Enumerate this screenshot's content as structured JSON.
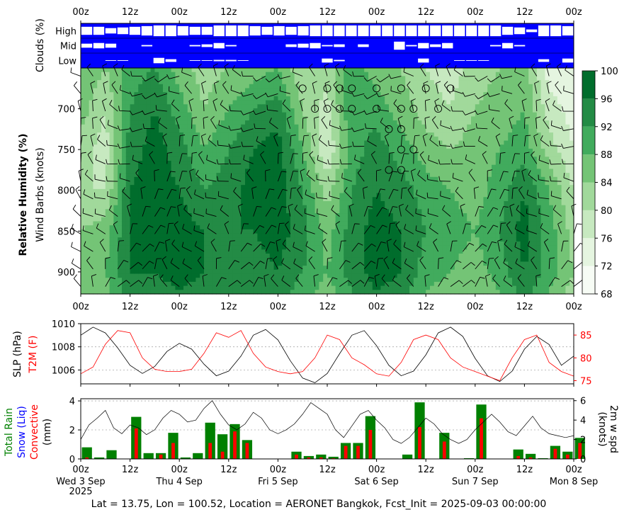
{
  "figure": {
    "footer": "Lat = 13.75, Lon = 100.52, Location = AERONET Bangkok, Fcst_Init = 2025-09-03 00:00:00"
  },
  "time_ticks": [
    "00z",
    "12z",
    "00z",
    "12z",
    "00z",
    "12z",
    "00z",
    "12z",
    "00z",
    "12z",
    "00z"
  ],
  "date_labels": [
    "Wed 3 Sep\n2025",
    "Thu 4 Sep",
    "Fri 5 Sep",
    "Sat 6 Sep",
    "Sun 7 Sep",
    "Mon 8 Sep"
  ],
  "colors": {
    "cloud_bg": "#0000ff",
    "cloud_fill": "#ffffff",
    "rh_scale": [
      "#f7fcf5",
      "#e5f5e0",
      "#c7e9c0",
      "#a1d99b",
      "#74c476",
      "#41ab5d",
      "#238b45",
      "#006d2c",
      "#00441b"
    ],
    "slp_line": "#000000",
    "t2m_line": "#ff0000",
    "rain_bar": "#008000",
    "conv_bar": "#ff0000",
    "wind_line": "#000000"
  },
  "chart_data": [
    {
      "type": "heatmap",
      "name": "clouds",
      "ylabel": "Clouds (%)",
      "levels": [
        "High",
        "Mid",
        "Low"
      ],
      "x_hours": [
        0,
        3,
        6,
        9,
        12,
        15,
        18,
        21,
        24,
        27,
        30,
        33,
        36,
        39,
        42,
        45,
        48,
        51,
        54,
        57,
        60,
        63,
        66,
        69,
        72,
        75,
        78,
        81,
        84,
        87,
        90,
        93,
        96,
        99,
        102,
        105,
        108,
        111,
        114,
        117,
        120
      ],
      "high": [
        60,
        60,
        40,
        50,
        60,
        70,
        80,
        80,
        70,
        60,
        60,
        80,
        80,
        80,
        70,
        60,
        70,
        60,
        70,
        80,
        80,
        80,
        80,
        80,
        80,
        80,
        80,
        80,
        80,
        80,
        80,
        80,
        80,
        80,
        80,
        60,
        50,
        20,
        80,
        80,
        70
      ],
      "mid": [
        30,
        40,
        30,
        0,
        0,
        10,
        0,
        0,
        0,
        10,
        20,
        40,
        10,
        0,
        0,
        0,
        0,
        20,
        30,
        40,
        10,
        20,
        0,
        20,
        0,
        0,
        60,
        10,
        40,
        20,
        40,
        0,
        0,
        0,
        10,
        40,
        10,
        0,
        0,
        0,
        0
      ],
      "low": [
        0,
        0,
        5,
        5,
        0,
        0,
        40,
        20,
        0,
        5,
        5,
        10,
        10,
        5,
        0,
        0,
        0,
        0,
        0,
        0,
        30,
        10,
        0,
        0,
        0,
        0,
        0,
        0,
        30,
        0,
        0,
        5,
        5,
        5,
        0,
        0,
        0,
        0,
        20,
        0,
        30
      ]
    },
    {
      "type": "heatmap",
      "name": "relative_humidity",
      "ylabel": "Relative Humidity (%)",
      "ylabel2": "Wind Barbs (knots)",
      "pressure_ticks": [
        700,
        750,
        800,
        850,
        900
      ],
      "ylim": [
        925,
        650
      ],
      "colorbar_ticks": [
        68,
        72,
        76,
        80,
        84,
        88,
        92,
        96,
        100
      ],
      "x_hours": [
        0,
        6,
        12,
        18,
        24,
        30,
        36,
        42,
        48,
        54,
        60,
        66,
        72,
        78,
        84,
        90,
        96,
        102,
        108,
        114,
        120
      ],
      "pressures": [
        650,
        700,
        750,
        800,
        850,
        900,
        925
      ],
      "rh": [
        [
          88,
          84,
          90,
          92,
          86,
          82,
          84,
          86,
          88,
          80,
          82,
          90,
          86,
          84,
          80,
          78,
          82,
          84,
          86,
          74,
          72
        ],
        [
          86,
          80,
          92,
          96,
          90,
          84,
          88,
          92,
          94,
          84,
          78,
          92,
          90,
          86,
          82,
          80,
          84,
          86,
          88,
          78,
          74
        ],
        [
          82,
          78,
          94,
          98,
          94,
          88,
          92,
          96,
          98,
          88,
          76,
          90,
          94,
          90,
          86,
          84,
          86,
          88,
          90,
          82,
          76
        ],
        [
          80,
          80,
          96,
          98,
          96,
          92,
          94,
          98,
          98,
          92,
          82,
          92,
          96,
          94,
          90,
          88,
          86,
          90,
          96,
          88,
          80
        ],
        [
          84,
          86,
          96,
          98,
          98,
          96,
          96,
          96,
          98,
          94,
          86,
          94,
          98,
          96,
          92,
          90,
          88,
          92,
          98,
          90,
          82
        ],
        [
          86,
          88,
          96,
          96,
          98,
          96,
          94,
          94,
          96,
          92,
          88,
          94,
          98,
          96,
          90,
          88,
          86,
          90,
          96,
          90,
          84
        ],
        [
          84,
          86,
          94,
          94,
          96,
          94,
          92,
          92,
          94,
          90,
          86,
          92,
          96,
          94,
          88,
          86,
          84,
          88,
          94,
          88,
          82
        ]
      ]
    },
    {
      "type": "line",
      "name": "slp_t2m",
      "ylabel": "SLP (hPa)",
      "ylabel2": "T2M (F)",
      "slp_ticks": [
        1006,
        1008,
        1010
      ],
      "t2m_ticks": [
        75,
        80,
        85
      ],
      "slp_ylim": [
        1004.8,
        1010.0
      ],
      "t2m_ylim": [
        74.3,
        87.5
      ],
      "x_hours": [
        0,
        3,
        6,
        9,
        12,
        15,
        18,
        21,
        24,
        27,
        30,
        33,
        36,
        39,
        42,
        45,
        48,
        51,
        54,
        57,
        60,
        63,
        66,
        69,
        72,
        75,
        78,
        81,
        84,
        87,
        90,
        93,
        96,
        99,
        102,
        105,
        108,
        111,
        114,
        117,
        120
      ],
      "series": [
        {
          "name": "SLP",
          "values": [
            1009.0,
            1009.7,
            1009.2,
            1007.9,
            1006.4,
            1005.7,
            1006.3,
            1007.6,
            1008.3,
            1007.8,
            1006.5,
            1005.5,
            1005.9,
            1007.2,
            1009.0,
            1009.5,
            1008.6,
            1006.8,
            1005.3,
            1004.9,
            1005.7,
            1007.4,
            1009.0,
            1009.4,
            1008.1,
            1006.4,
            1005.5,
            1005.9,
            1007.3,
            1009.2,
            1009.7,
            1008.9,
            1007.0,
            1005.5,
            1005.0,
            1005.9,
            1007.8,
            1008.9,
            1008.2,
            1006.4,
            1007.2
          ]
        },
        {
          "name": "T2M",
          "values": [
            76.5,
            78.0,
            83.0,
            86.0,
            85.5,
            80.0,
            77.5,
            77.0,
            77.0,
            77.5,
            81.0,
            85.5,
            84.5,
            86.0,
            81.0,
            78.0,
            77.0,
            76.5,
            77.0,
            80.0,
            85.0,
            84.0,
            80.0,
            78.5,
            76.5,
            76.0,
            79.0,
            84.0,
            85.0,
            84.0,
            80.0,
            78.0,
            77.0,
            76.0,
            75.0,
            80.0,
            84.0,
            85.0,
            79.0,
            77.0,
            76.0
          ]
        }
      ]
    },
    {
      "type": "bar",
      "name": "precip_wind",
      "ylabel_left": [
        "Total Rain",
        "Snow (Liq)",
        "Convective",
        "(mm)"
      ],
      "ylabel_right": "2m w spd\n(knots)",
      "precip_ticks": [
        0,
        2,
        4
      ],
      "wind_ticks": [
        0,
        2,
        4,
        6
      ],
      "precip_ylim": [
        0,
        4.15
      ],
      "wind_ylim": [
        0,
        6.2
      ],
      "bar_hours": [
        0,
        3,
        6,
        9,
        12,
        15,
        18,
        21,
        24,
        27,
        30,
        33,
        36,
        39,
        42,
        45,
        48,
        51,
        54,
        57,
        60,
        63,
        66,
        69,
        72,
        75,
        78,
        81,
        84,
        87,
        90,
        93,
        96,
        99,
        102,
        105,
        108,
        111,
        114,
        117,
        120
      ],
      "total_rain": [
        0.8,
        0.1,
        0.6,
        0,
        2.9,
        0.4,
        0.4,
        1.8,
        0.1,
        0.4,
        2.5,
        1.7,
        2.4,
        1.3,
        0,
        0,
        0,
        0.5,
        0.2,
        0.3,
        0.15,
        1.1,
        1.1,
        2.95,
        0,
        0,
        0.3,
        3.9,
        0,
        1.8,
        0,
        0.05,
        3.75,
        0,
        0.0,
        0.65,
        0.35,
        0.05,
        0.9,
        0.5,
        1.45
      ],
      "convective": [
        0.1,
        0,
        0,
        0,
        2.1,
        0,
        0.3,
        1.1,
        0,
        0,
        1.1,
        0.5,
        1.9,
        1.1,
        0,
        0,
        0,
        0.3,
        0.1,
        0.1,
        0.05,
        0.9,
        0.9,
        2.0,
        0,
        0,
        0,
        2.2,
        0,
        1.2,
        0,
        0,
        2.8,
        0,
        0,
        0.2,
        0.1,
        0,
        0.7,
        0.3,
        1.1
      ],
      "wind_hours": [
        0,
        2,
        4,
        6,
        8,
        10,
        12,
        14,
        16,
        18,
        20,
        22,
        24,
        26,
        28,
        30,
        32,
        34,
        36,
        38,
        40,
        42,
        44,
        46,
        48,
        50,
        52,
        54,
        56,
        58,
        60,
        62,
        64,
        66,
        68,
        70,
        72,
        74,
        76,
        78,
        80,
        82,
        84,
        86,
        88,
        90,
        92,
        94,
        96,
        98,
        100,
        102,
        104,
        106,
        108,
        110,
        112,
        114,
        116,
        118,
        120
      ],
      "wind_speed": [
        2.0,
        3.5,
        4.2,
        5.0,
        3.2,
        2.6,
        3.5,
        3.2,
        2.5,
        3.0,
        4.2,
        5.0,
        4.6,
        3.8,
        4.0,
        5.2,
        6.0,
        4.6,
        3.5,
        3.0,
        3.6,
        4.8,
        4.2,
        3.0,
        2.6,
        3.0,
        3.6,
        4.6,
        5.8,
        5.2,
        4.6,
        3.0,
        2.2,
        3.4,
        4.6,
        5.0,
        4.0,
        3.2,
        2.0,
        1.6,
        2.2,
        3.2,
        4.2,
        3.6,
        2.6,
        2.0,
        1.6,
        2.0,
        3.0,
        3.8,
        4.6,
        3.8,
        2.8,
        2.4,
        3.4,
        4.4,
        3.2,
        2.6,
        2.4,
        2.2,
        2.4
      ]
    }
  ]
}
